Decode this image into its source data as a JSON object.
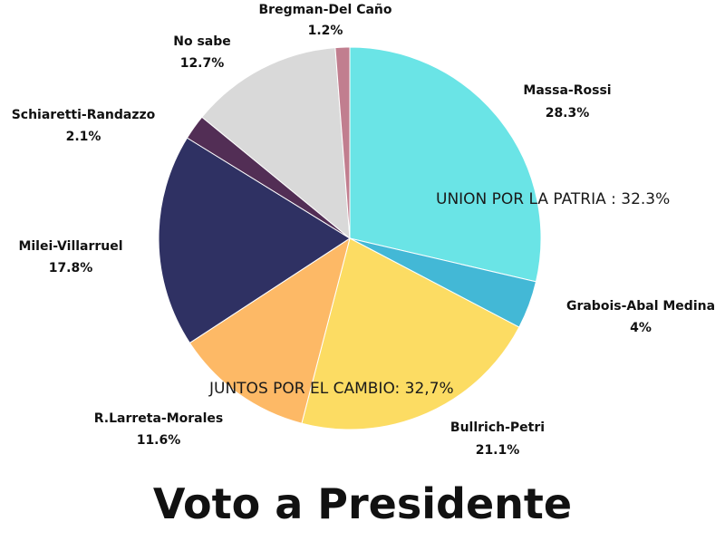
{
  "chart_data": {
    "type": "pie",
    "title": "Voto a Presidente",
    "slices": [
      {
        "label": "Massa-Rossi",
        "value": 28.3,
        "value_text": "28.3%",
        "color": "#6ae4e6"
      },
      {
        "label": "Grabois-Abal Medina",
        "value": 4,
        "value_text": "4%",
        "color": "#43b8d6"
      },
      {
        "label": "Bullrich-Petri",
        "value": 21.1,
        "value_text": "21.1%",
        "color": "#fcdc63"
      },
      {
        "label": "R.Larreta-Morales",
        "value": 11.6,
        "value_text": "11.6%",
        "color": "#fdb966"
      },
      {
        "label": "Milei-Villarruel",
        "value": 17.8,
        "value_text": "17.8%",
        "color": "#2f3163"
      },
      {
        "label": "Schiaretti-Randazzo",
        "value": 2.1,
        "value_text": "2.1%",
        "color": "#522e55"
      },
      {
        "label": "No sabe",
        "value": 12.7,
        "value_text": "12.7%",
        "color": "#d9d9d9"
      },
      {
        "label": "Bregman-Del Caño",
        "value": 1.2,
        "value_text": "1.2%",
        "color": "#c17e8f"
      }
    ],
    "group_annotations": [
      {
        "text": "UNION POR LA PATRIA : 32.3%"
      },
      {
        "text": "JUNTOS POR EL CAMBIO: 32,7%"
      }
    ]
  }
}
